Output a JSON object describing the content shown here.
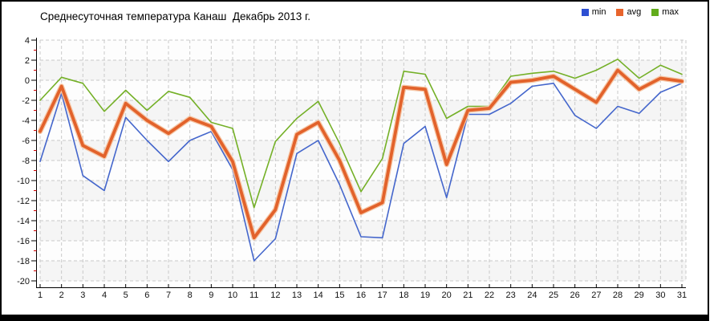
{
  "title": "Среднесуточная температура Канаш  Декабрь 2013 г.",
  "legend": [
    {
      "label": "min",
      "color": "#2d4fd2"
    },
    {
      "label": "avg",
      "color": "#e8642c"
    },
    {
      "label": "max",
      "color": "#62ac1c"
    }
  ],
  "colors": {
    "frame": "#000000",
    "grid": "#c9c9c9",
    "band": "#f5f5f5",
    "axis": "#000000",
    "minor_tick": "#d40000",
    "tick_label": "#111111"
  },
  "chart_data": {
    "type": "line",
    "title": "Среднесуточная температура Канаш  Декабрь 2013 г.",
    "xlabel": "",
    "ylabel": "",
    "x": [
      1,
      2,
      3,
      4,
      5,
      6,
      7,
      8,
      9,
      10,
      11,
      12,
      13,
      14,
      15,
      16,
      17,
      18,
      19,
      20,
      21,
      22,
      23,
      24,
      25,
      26,
      27,
      28,
      29,
      30,
      31
    ],
    "xticks": [
      1,
      2,
      3,
      4,
      5,
      6,
      7,
      8,
      9,
      10,
      11,
      12,
      13,
      14,
      15,
      16,
      17,
      18,
      19,
      20,
      21,
      22,
      23,
      24,
      25,
      26,
      27,
      28,
      29,
      30,
      31
    ],
    "ylim": [
      -20,
      4
    ],
    "ytick_step": 2,
    "yticks": [
      4,
      2,
      0,
      -2,
      -4,
      -6,
      -8,
      -10,
      -12,
      -14,
      -16,
      -18,
      -20
    ],
    "grid": "dashed",
    "legend_position": "top-right",
    "series": [
      {
        "name": "min",
        "color": "#4466cc",
        "width": 1.6,
        "values": [
          -8.1,
          -1.3,
          -9.5,
          -11.0,
          -3.7,
          -6.0,
          -8.1,
          -6.0,
          -5.1,
          -8.9,
          -18.0,
          -15.8,
          -7.3,
          -6.0,
          -10.4,
          -15.6,
          -15.7,
          -6.3,
          -4.6,
          -11.7,
          -3.4,
          -3.4,
          -2.3,
          -0.6,
          -0.3,
          -3.5,
          -4.8,
          -2.6,
          -3.3,
          -1.2,
          -0.3
        ]
      },
      {
        "name": "avg",
        "color": "#e2622b",
        "halo": "#f6c6a5",
        "width": 3.8,
        "values": [
          -5.1,
          -0.6,
          -6.5,
          -7.6,
          -2.3,
          -4.0,
          -5.3,
          -3.8,
          -4.6,
          -8.1,
          -15.7,
          -12.9,
          -5.4,
          -4.2,
          -8.0,
          -13.2,
          -12.2,
          -0.7,
          -0.9,
          -8.4,
          -3.0,
          -2.8,
          -0.2,
          0.0,
          0.4,
          -0.9,
          -2.2,
          1.0,
          -0.9,
          0.2,
          -0.1
        ]
      },
      {
        "name": "max",
        "color": "#74b027",
        "width": 1.6,
        "values": [
          -2.0,
          0.3,
          -0.3,
          -3.1,
          -1.0,
          -3.0,
          -1.1,
          -1.7,
          -4.2,
          -4.8,
          -12.7,
          -6.1,
          -3.8,
          -2.1,
          -6.3,
          -11.1,
          -7.8,
          0.9,
          0.6,
          -3.8,
          -2.6,
          -2.6,
          0.4,
          0.7,
          0.9,
          0.2,
          1.0,
          2.1,
          0.2,
          1.5,
          0.6
        ]
      }
    ]
  }
}
